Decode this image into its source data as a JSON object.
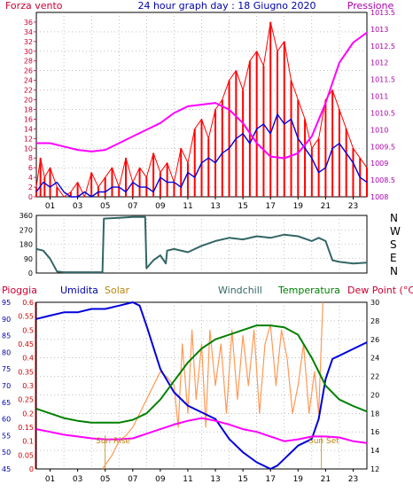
{
  "colors": {
    "red": "#ff0000",
    "blue": "#0000dd",
    "magenta": "#ff00ff",
    "navy": "#0000aa",
    "olive": "#b8860b",
    "tealdark": "#336666",
    "green": "#008000",
    "orange": "#ff9955",
    "axisred": "#cc0000",
    "crimson": "#cc0033",
    "purple": "#aa00aa"
  },
  "chart_data": [
    {
      "type": "line",
      "title": "24 hour graph day : 18 Giugno 2020",
      "left_axis_label": "Forza vento",
      "right_axis_label": "Pressione",
      "ylim_left": [
        0,
        38
      ],
      "yticks_left": [
        "0",
        "2",
        "4",
        "6",
        "8",
        "10",
        "12",
        "14",
        "16",
        "18",
        "20",
        "22",
        "24",
        "26",
        "28",
        "30",
        "32",
        "34",
        "36"
      ],
      "ylim_right": [
        1008,
        1013.5
      ],
      "yticks_right": [
        "1008",
        "1008.5",
        "1009",
        "1009.5",
        "1010",
        "1010.5",
        "1011",
        "1011.5",
        "1012",
        "1012.5",
        "1013",
        "1013.5"
      ],
      "xticks": [
        "01",
        "03",
        "05",
        "07",
        "09",
        "11",
        "13",
        "15",
        "17",
        "19",
        "21",
        "23"
      ],
      "series": [
        {
          "role": "wind_gust",
          "color": "#ff0000",
          "axis": "left",
          "x": [
            0.0,
            0.3,
            0.6,
            1.0,
            1.5,
            2.0,
            2.5,
            3.0,
            3.5,
            4.0,
            4.5,
            5.0,
            5.5,
            6.0,
            6.5,
            7.0,
            7.5,
            8.0,
            8.5,
            9.0,
            9.5,
            10.0,
            10.5,
            11.0,
            11.5,
            12.0,
            12.5,
            13.0,
            13.5,
            14.0,
            14.5,
            15.0,
            15.5,
            16.0,
            16.5,
            17.0,
            17.5,
            18.0,
            18.5,
            19.0,
            19.5,
            20.0,
            20.5,
            21.0,
            21.5,
            22.0,
            22.5,
            23.0,
            23.5,
            24.0
          ],
          "y": [
            2,
            8,
            4,
            6,
            2,
            0,
            1,
            3,
            0,
            5,
            2,
            4,
            6,
            2,
            8,
            3,
            6,
            4,
            9,
            5,
            7,
            3,
            10,
            7,
            14,
            16,
            12,
            18,
            20,
            24,
            26,
            22,
            28,
            30,
            27,
            36,
            30,
            32,
            24,
            20,
            16,
            10,
            12,
            20,
            22,
            18,
            14,
            10,
            8,
            6
          ]
        },
        {
          "role": "wind_avg",
          "color": "#0000dd",
          "axis": "left",
          "x": [
            0.0,
            0.5,
            1.0,
            1.5,
            2.0,
            2.5,
            3.0,
            3.5,
            4.0,
            4.5,
            5.0,
            5.5,
            6.0,
            6.5,
            7.0,
            7.5,
            8.0,
            8.5,
            9.0,
            9.5,
            10.0,
            10.5,
            11.0,
            11.5,
            12.0,
            12.5,
            13.0,
            13.5,
            14.0,
            14.5,
            15.0,
            15.5,
            16.0,
            16.5,
            17.0,
            17.5,
            18.0,
            18.5,
            19.0,
            19.5,
            20.0,
            20.5,
            21.0,
            21.5,
            22.0,
            22.5,
            23.0,
            23.5,
            24.0
          ],
          "y": [
            1,
            3,
            2,
            3,
            1,
            0,
            0,
            1,
            0,
            1,
            1,
            2,
            2,
            1,
            3,
            2,
            2,
            1,
            4,
            3,
            3,
            2,
            5,
            4,
            7,
            8,
            7,
            9,
            10,
            12,
            13,
            11,
            14,
            15,
            13,
            17,
            15,
            16,
            12,
            10,
            8,
            5,
            6,
            10,
            11,
            9,
            7,
            4,
            3
          ]
        },
        {
          "role": "pressure",
          "color": "#ff00ff",
          "axis": "right",
          "x": [
            0,
            1,
            2,
            3,
            4,
            5,
            6,
            7,
            8,
            9,
            10,
            11,
            12,
            13,
            14,
            15,
            16,
            17,
            18,
            19,
            20,
            21,
            22,
            23,
            24
          ],
          "y": [
            1009.6,
            1009.6,
            1009.5,
            1009.4,
            1009.35,
            1009.4,
            1009.6,
            1009.8,
            1010.0,
            1010.2,
            1010.5,
            1010.7,
            1010.75,
            1010.8,
            1010.6,
            1010.2,
            1009.6,
            1009.2,
            1009.15,
            1009.3,
            1009.8,
            1010.8,
            1012.0,
            1012.6,
            1012.9
          ]
        }
      ]
    },
    {
      "type": "line",
      "title": "",
      "right_axis_label": [
        "N",
        "W",
        "S",
        "E",
        "N"
      ],
      "ylim": [
        0,
        360
      ],
      "yticks": [
        "0",
        "90",
        "180",
        "270",
        "360"
      ],
      "series": [
        {
          "role": "wind_direction",
          "color": "#336666",
          "x": [
            0.0,
            0.5,
            1.0,
            1.5,
            2.0,
            3.0,
            4.0,
            4.8,
            4.9,
            6.0,
            7.0,
            7.9,
            8.0,
            8.5,
            9.0,
            9.4,
            9.5,
            10.0,
            11.0,
            12.0,
            13.0,
            14.0,
            15.0,
            16.0,
            17.0,
            18.0,
            19.0,
            20.0,
            20.5,
            21.0,
            21.5,
            22.0,
            23.0,
            24.0
          ],
          "y": [
            150,
            140,
            90,
            10,
            5,
            5,
            5,
            5,
            340,
            345,
            350,
            350,
            30,
            80,
            110,
            60,
            140,
            150,
            130,
            170,
            200,
            220,
            210,
            230,
            220,
            240,
            230,
            200,
            220,
            200,
            80,
            70,
            60,
            65
          ]
        }
      ]
    },
    {
      "type": "line",
      "title": "",
      "header_labels": {
        "rain": "Pioggia",
        "humidity": "Umidita",
        "solar": "Solar",
        "windchill": "Windchill",
        "temperature": "Temperatura",
        "dewpoint": "Dew Point (°C)"
      },
      "annotations": [
        "Sun Rise",
        "Sun Set"
      ],
      "ylim_humidity": [
        45,
        95
      ],
      "yticks_humidity": [
        "45",
        "50",
        "55",
        "60",
        "65",
        "70",
        "75",
        "80",
        "85",
        "90",
        "95"
      ],
      "ylim_rain": [
        0,
        0.6
      ],
      "yticks_rain": [
        "0",
        "0.05",
        "0.1",
        "0.15",
        "0.2",
        "0.25",
        "0.3",
        "0.35",
        "0.4",
        "0.45",
        "0.5",
        "0.55",
        "0.6"
      ],
      "ylim_temp": [
        12,
        30
      ],
      "yticks_temp": [
        "12",
        "14",
        "16",
        "18",
        "20",
        "22",
        "24",
        "26",
        "28",
        "30"
      ],
      "xticks": [
        "01",
        "03",
        "05",
        "07",
        "09",
        "11",
        "13",
        "15",
        "17",
        "19",
        "21",
        "23"
      ],
      "series": [
        {
          "role": "humidity",
          "color": "#0000dd",
          "axis": "humidity",
          "x": [
            0,
            1,
            2,
            3,
            4,
            5,
            6,
            7,
            7.5,
            8,
            9,
            10,
            11,
            12,
            13,
            14,
            15,
            16,
            17,
            17.5,
            18,
            19,
            20,
            20.5,
            21,
            21.5,
            22,
            23,
            24
          ],
          "y": [
            90,
            91,
            92,
            92,
            93,
            93,
            94,
            95,
            94,
            88,
            75,
            68,
            64,
            62,
            60,
            54,
            50,
            47,
            45,
            46,
            48,
            52,
            54,
            60,
            72,
            78,
            79,
            81,
            83
          ]
        },
        {
          "role": "solar",
          "color": "#ff9955",
          "axis": "rain",
          "x": [
            4.8,
            5.5,
            6.0,
            6.5,
            7.0,
            7.5,
            8.0,
            8.5,
            9.0,
            9.5,
            10.0,
            10.3,
            10.6,
            11.0,
            11.3,
            11.6,
            12.0,
            12.3,
            12.6,
            13.0,
            13.4,
            13.8,
            14.2,
            14.6,
            15.0,
            15.4,
            15.8,
            16.2,
            16.6,
            17.0,
            17.4,
            17.8,
            18.2,
            18.6,
            19.0,
            19.4,
            19.8,
            20.2,
            20.5,
            20.8
          ],
          "y": [
            0.0,
            0.05,
            0.1,
            0.12,
            0.15,
            0.2,
            0.25,
            0.3,
            0.35,
            0.33,
            0.3,
            0.15,
            0.45,
            0.2,
            0.5,
            0.25,
            0.45,
            0.15,
            0.5,
            0.3,
            0.45,
            0.2,
            0.5,
            0.25,
            0.48,
            0.3,
            0.5,
            0.2,
            0.45,
            0.52,
            0.3,
            0.5,
            0.4,
            0.2,
            0.3,
            0.45,
            0.2,
            0.35,
            0.2,
            0.6
          ]
        },
        {
          "role": "temperature",
          "color": "#008000",
          "axis": "temp",
          "x": [
            0,
            1,
            2,
            3,
            4,
            5,
            6,
            7,
            8,
            9,
            10,
            11,
            12,
            13,
            14,
            15,
            16,
            17,
            18,
            19,
            20,
            21,
            22,
            23,
            24
          ],
          "y": [
            18.5,
            18,
            17.5,
            17.2,
            17,
            17,
            17,
            17.3,
            18,
            19.5,
            21.5,
            23.5,
            25,
            26,
            26.5,
            27,
            27.5,
            27.5,
            27.3,
            26.5,
            24,
            21,
            19.5,
            18.8,
            18.2
          ]
        },
        {
          "role": "dewpoint",
          "color": "#ff00ff",
          "axis": "temp",
          "x": [
            0,
            1,
            2,
            3,
            4,
            5,
            6,
            7,
            8,
            9,
            10,
            11,
            12,
            13,
            14,
            15,
            16,
            17,
            18,
            19,
            20,
            21,
            22,
            23,
            24
          ],
          "y": [
            16.3,
            16,
            15.7,
            15.5,
            15.3,
            15.2,
            15.2,
            15.3,
            15.8,
            16.3,
            16.8,
            17.2,
            17.5,
            17.2,
            16.8,
            16.3,
            16,
            15.5,
            15,
            15.2,
            15.5,
            15.5,
            15.4,
            15,
            14.8
          ]
        },
        {
          "role": "windchill",
          "color": "#336666",
          "axis": "temp",
          "note": "coincides with temperature"
        }
      ]
    }
  ]
}
